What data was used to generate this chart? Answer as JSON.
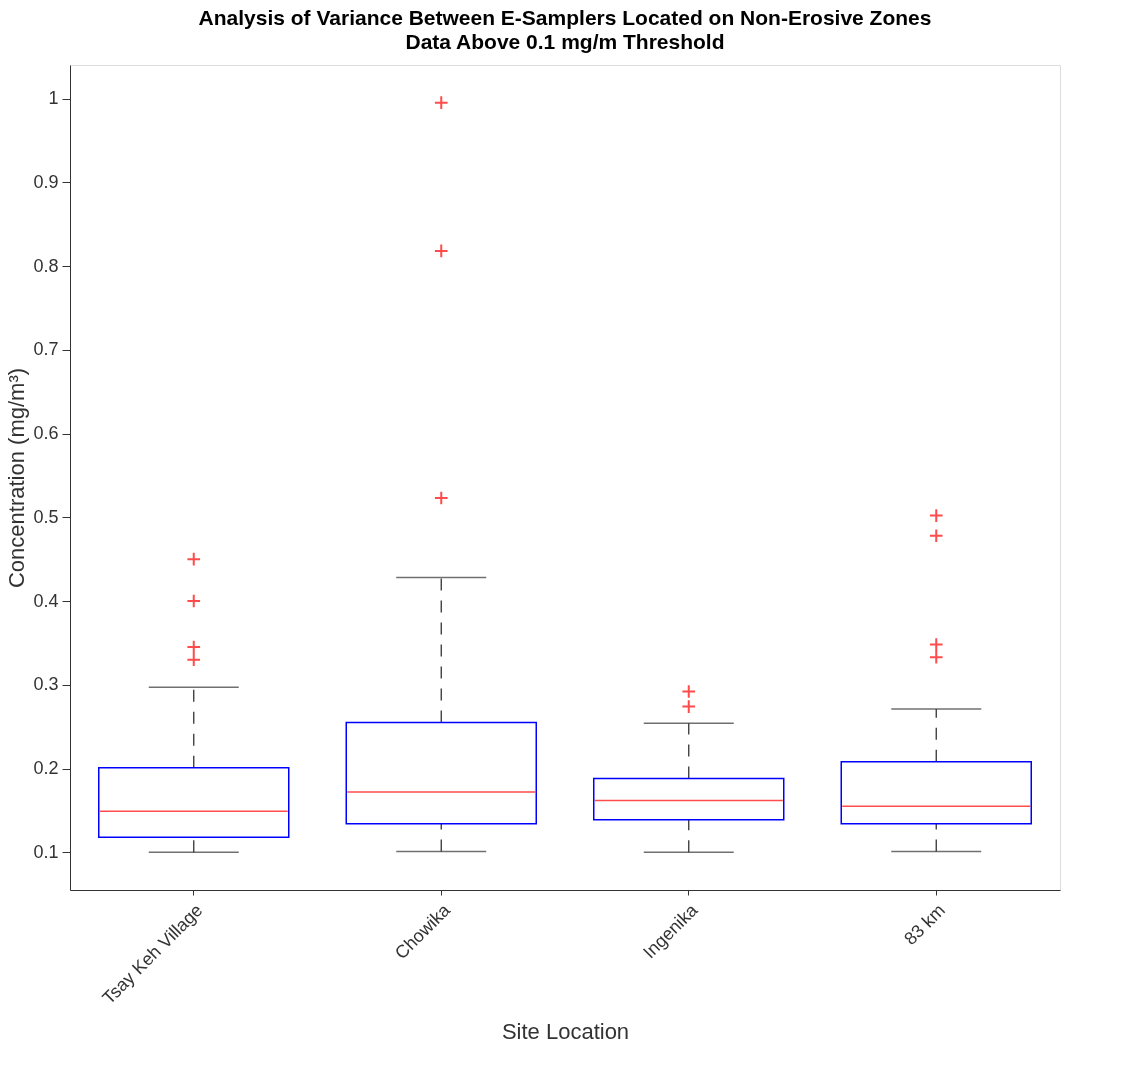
{
  "chart_data": {
    "type": "box",
    "title": "Analysis of Variance Between E-Samplers Located on Non-Erosive Zones",
    "subtitle": "Data Above 0.1 mg/m Threshold",
    "xlabel": "Site Location",
    "ylabel": "Concentration (mg/m³)",
    "categories": [
      "Tsay Keh Village",
      "Chowika",
      "Ingenika",
      "83 km"
    ],
    "series": [
      {
        "color": "#0000ff",
        "boxes": [
          {
            "low": 0.1,
            "q1": 0.118,
            "median": 0.149,
            "q3": 0.201,
            "high": 0.297,
            "outliers": [
              0.45,
              0.4,
              0.345,
              0.33
            ]
          },
          {
            "low": 0.101,
            "q1": 0.134,
            "median": 0.172,
            "q3": 0.255,
            "high": 0.428,
            "outliers": [
              0.995,
              0.818,
              0.523
            ]
          },
          {
            "low": 0.1,
            "q1": 0.139,
            "median": 0.162,
            "q3": 0.188,
            "high": 0.254,
            "outliers": [
              0.292,
              0.274
            ]
          },
          {
            "low": 0.101,
            "q1": 0.134,
            "median": 0.155,
            "q3": 0.208,
            "high": 0.271,
            "outliers": [
              0.502,
              0.478,
              0.348,
              0.333
            ]
          }
        ]
      }
    ],
    "ylim": [
      0.055,
      1.04
    ],
    "yticks": [
      0.1,
      0.2,
      0.3,
      0.4,
      0.5,
      0.6,
      0.7,
      0.8,
      0.9,
      1
    ],
    "grid": false,
    "marker": "cross",
    "line_style": "dashed"
  }
}
